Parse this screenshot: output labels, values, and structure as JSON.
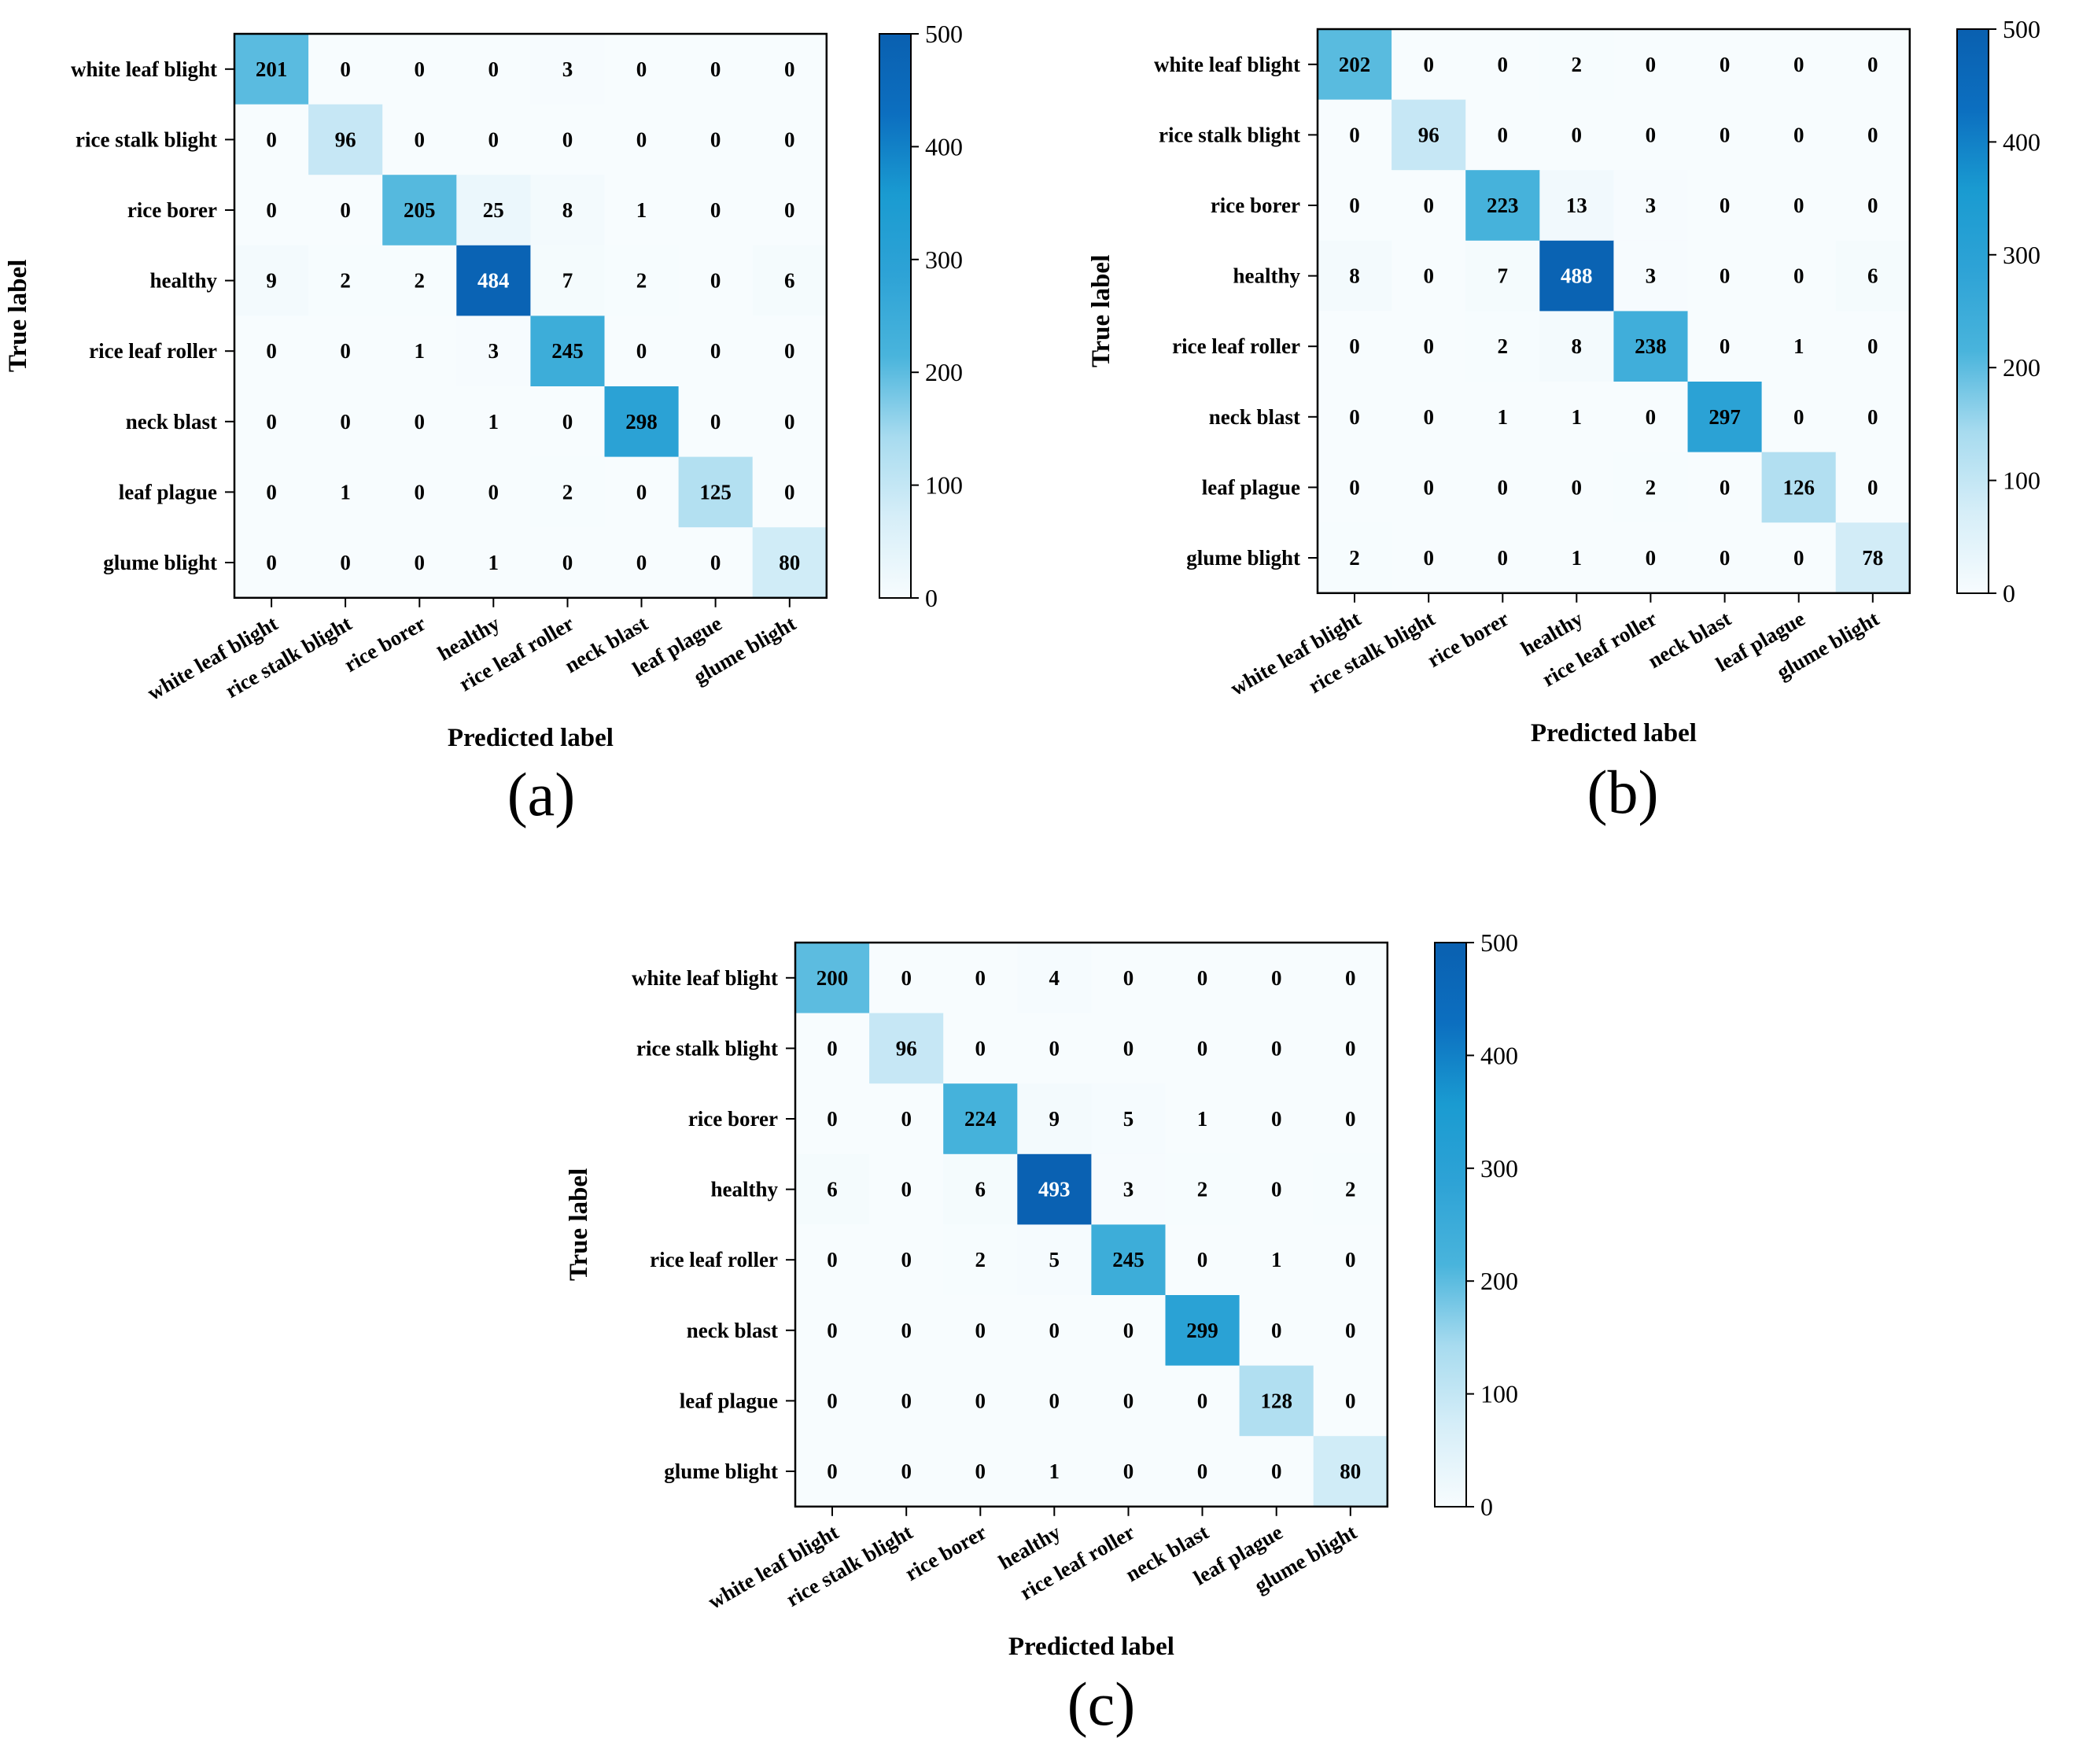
{
  "chart_data": [
    {
      "type": "heatmap",
      "caption": "(a)",
      "row_labels": [
        "white leaf blight",
        "rice stalk blight",
        "rice borer",
        "healthy",
        "rice leaf roller",
        "neck blast",
        "leaf plague",
        "glume blight"
      ],
      "col_labels": [
        "white leaf blight",
        "rice stalk blight",
        "rice borer",
        "healthy",
        "rice leaf roller",
        "neck blast",
        "leaf plague",
        "glume blight"
      ],
      "xlabel": "Predicted label",
      "ylabel": "True label",
      "matrix": [
        [
          201,
          0,
          0,
          0,
          3,
          0,
          0,
          0
        ],
        [
          0,
          96,
          0,
          0,
          0,
          0,
          0,
          0
        ],
        [
          0,
          0,
          205,
          25,
          8,
          1,
          0,
          0
        ],
        [
          9,
          2,
          2,
          484,
          7,
          2,
          0,
          6
        ],
        [
          0,
          0,
          1,
          3,
          245,
          0,
          0,
          0
        ],
        [
          0,
          0,
          0,
          1,
          0,
          298,
          0,
          0
        ],
        [
          0,
          1,
          0,
          0,
          2,
          0,
          125,
          0
        ],
        [
          0,
          0,
          0,
          1,
          0,
          0,
          0,
          80
        ]
      ],
      "colorbar": {
        "min": 0,
        "max": 500,
        "ticks": [
          0,
          100,
          200,
          300,
          400,
          500
        ]
      }
    },
    {
      "type": "heatmap",
      "caption": "(b)",
      "row_labels": [
        "white leaf blight",
        "rice stalk blight",
        "rice borer",
        "healthy",
        "rice leaf roller",
        "neck blast",
        "leaf plague",
        "glume blight"
      ],
      "col_labels": [
        "white leaf blight",
        "rice stalk blight",
        "rice borer",
        "healthy",
        "rice leaf roller",
        "neck blast",
        "leaf plague",
        "glume blight"
      ],
      "xlabel": "Predicted label",
      "ylabel": "True label",
      "matrix": [
        [
          202,
          0,
          0,
          2,
          0,
          0,
          0,
          0
        ],
        [
          0,
          96,
          0,
          0,
          0,
          0,
          0,
          0
        ],
        [
          0,
          0,
          223,
          13,
          3,
          0,
          0,
          0
        ],
        [
          8,
          0,
          7,
          488,
          3,
          0,
          0,
          6
        ],
        [
          0,
          0,
          2,
          8,
          238,
          0,
          1,
          0
        ],
        [
          0,
          0,
          1,
          1,
          0,
          297,
          0,
          0
        ],
        [
          0,
          0,
          0,
          0,
          2,
          0,
          126,
          0
        ],
        [
          2,
          0,
          0,
          1,
          0,
          0,
          0,
          78
        ]
      ],
      "colorbar": {
        "min": 0,
        "max": 500,
        "ticks": [
          0,
          100,
          200,
          300,
          400,
          500
        ]
      }
    },
    {
      "type": "heatmap",
      "caption": "(c)",
      "row_labels": [
        "white leaf blight",
        "rice stalk blight",
        "rice borer",
        "healthy",
        "rice leaf roller",
        "neck blast",
        "leaf plague",
        "glume blight"
      ],
      "col_labels": [
        "white leaf blight",
        "rice stalk blight",
        "rice borer",
        "healthy",
        "rice leaf roller",
        "neck blast",
        "leaf plague",
        "glume blight"
      ],
      "xlabel": "Predicted label",
      "ylabel": "True label",
      "matrix": [
        [
          200,
          0,
          0,
          4,
          0,
          0,
          0,
          0
        ],
        [
          0,
          96,
          0,
          0,
          0,
          0,
          0,
          0
        ],
        [
          0,
          0,
          224,
          9,
          5,
          1,
          0,
          0
        ],
        [
          6,
          0,
          6,
          493,
          3,
          2,
          0,
          2
        ],
        [
          0,
          0,
          2,
          5,
          245,
          0,
          1,
          0
        ],
        [
          0,
          0,
          0,
          0,
          0,
          299,
          0,
          0
        ],
        [
          0,
          0,
          0,
          0,
          0,
          0,
          128,
          0
        ],
        [
          0,
          0,
          0,
          1,
          0,
          0,
          0,
          80
        ]
      ],
      "colorbar": {
        "min": 0,
        "max": 500,
        "ticks": [
          0,
          100,
          200,
          300,
          400,
          500
        ]
      }
    }
  ],
  "colors": {
    "colormap": [
      "#f7fcfe",
      "#d6eef8",
      "#a7dbef",
      "#49b4dc",
      "#2ea3d6",
      "#1a9bd1",
      "#0c6fc0",
      "#0a60b0"
    ],
    "frame": "#000000",
    "text_dark": "#000000",
    "text_light": "#ffffff"
  }
}
